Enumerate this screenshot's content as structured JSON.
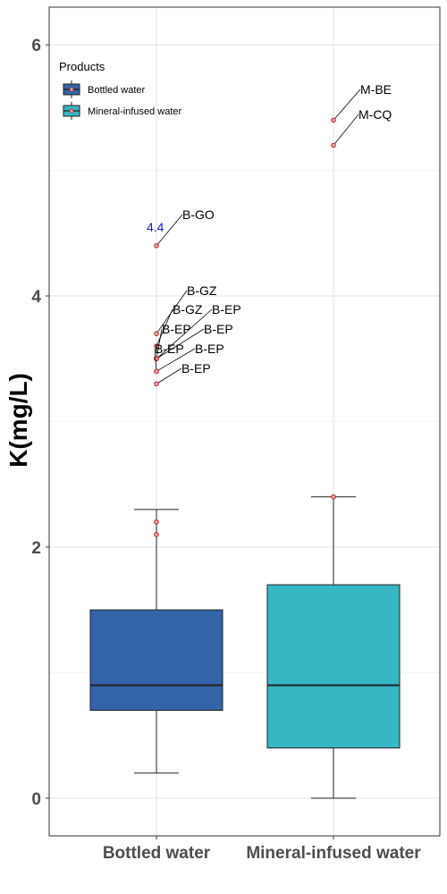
{
  "chart_data": {
    "type": "boxplot",
    "ylabel": "K(mg/L)",
    "xlabel": "",
    "ylim": [
      -0.3,
      6.3
    ],
    "yticks": [
      0,
      2,
      4,
      6
    ],
    "grid": true,
    "legend": {
      "title": "Products",
      "placement": "top-left",
      "entries": [
        "Bottled water",
        "Mineral-infused water"
      ]
    },
    "categories": [
      "Bottled water",
      "Mineral-infused water"
    ],
    "colors": {
      "Bottled water": "#3264a8",
      "Mineral-infused water": "#37b6c4",
      "outlier_fill": "#f4a6a6",
      "outlier_stroke": "#c21f1f",
      "value_label": "#1a1acc"
    },
    "boxes": [
      {
        "category": "Bottled water",
        "whisker_low": 0.2,
        "q1": 0.7,
        "median": 0.9,
        "q3": 1.5,
        "whisker_high": 2.3,
        "points_near_whisker": [
          2.2,
          2.1
        ],
        "outliers": [
          {
            "y": 4.4,
            "label": "B-GO"
          },
          {
            "y": 3.7,
            "label": "B-GZ"
          },
          {
            "y": 3.6,
            "label": "B-GZ"
          },
          {
            "y": 3.5,
            "label": "B-EP"
          },
          {
            "y": 3.5,
            "label": "B-EP"
          },
          {
            "y": 3.5,
            "label": "B-EP"
          },
          {
            "y": 3.4,
            "label": "B-EP"
          },
          {
            "y": 3.4,
            "label": "B-EP"
          },
          {
            "y": 3.3,
            "label": "B-EP"
          }
        ],
        "value_labels": [
          {
            "y": 4.4,
            "text": "4.4"
          }
        ]
      },
      {
        "category": "Mineral-infused water",
        "whisker_low": 0.0,
        "q1": 0.4,
        "median": 0.9,
        "q3": 1.7,
        "whisker_high": 2.4,
        "points_near_whisker": [
          2.4
        ],
        "outliers": [
          {
            "y": 5.4,
            "label": "M-BE"
          },
          {
            "y": 5.2,
            "label": "M-CQ"
          }
        ],
        "value_labels": []
      }
    ]
  }
}
